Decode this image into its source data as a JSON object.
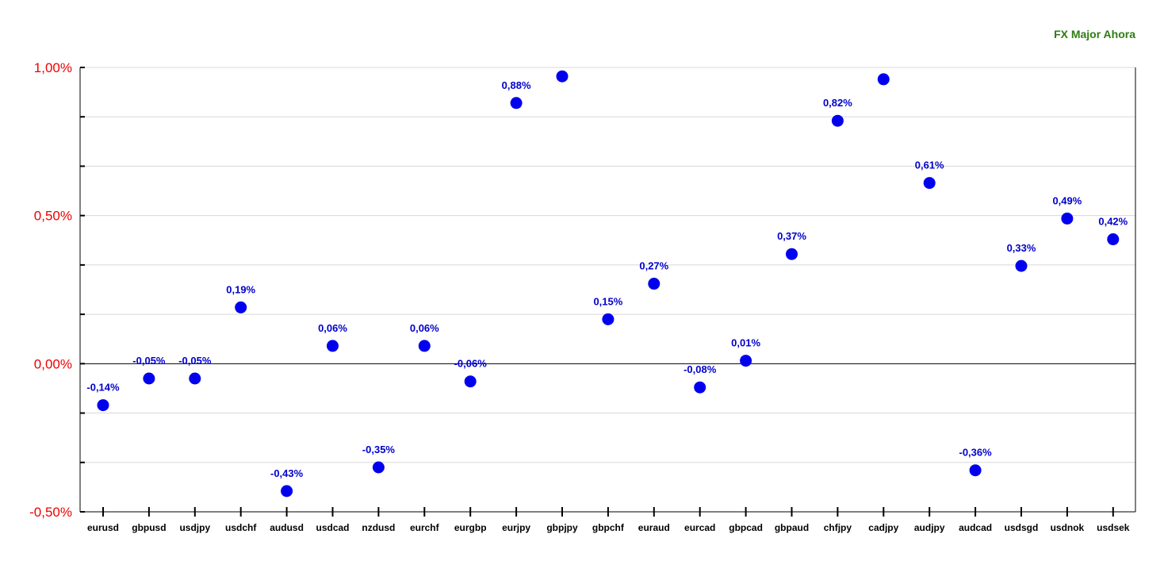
{
  "chart_data": {
    "type": "scatter",
    "title": "FX Major Ahora",
    "xlabel": "",
    "ylabel": "",
    "ylim": [
      -0.5,
      1.0
    ],
    "yticks": [
      {
        "value": 1.0,
        "label": "1,00%"
      },
      {
        "value": 0.5,
        "label": "0,50%"
      },
      {
        "value": 0.0,
        "label": "0,00%"
      },
      {
        "value": -0.5,
        "label": "-0,50%"
      }
    ],
    "categories": [
      "eurusd",
      "gbpusd",
      "usdjpy",
      "usdchf",
      "audusd",
      "usdcad",
      "nzdusd",
      "eurchf",
      "eurgbp",
      "eurjpy",
      "gbpjpy",
      "gbpchf",
      "euraud",
      "eurcad",
      "gbpcad",
      "gbpaud",
      "chfjpy",
      "cadjpy",
      "audjpy",
      "audcad",
      "usdsgd",
      "usdnok",
      "usdsek"
    ],
    "values": [
      -0.14,
      -0.05,
      -0.05,
      0.19,
      -0.43,
      0.06,
      -0.35,
      0.06,
      -0.06,
      0.88,
      0.97,
      0.15,
      0.27,
      -0.08,
      0.01,
      0.37,
      0.82,
      0.96,
      0.61,
      -0.36,
      0.33,
      0.49,
      0.42
    ],
    "data_labels": [
      "-0,14%",
      "-0,05%",
      "-0,05%",
      "0,19%",
      "-0,43%",
      "0,06%",
      "-0,35%",
      "0,06%",
      "-0,06%",
      "0,88%",
      "",
      "0,15%",
      "0,27%",
      "-0,08%",
      "0,01%",
      "0,37%",
      "0,82%",
      "",
      "0,61%",
      "-0,36%",
      "0,33%",
      "0,49%",
      "0,42%"
    ],
    "grid": true,
    "legend": "none",
    "colors": {
      "point": "#0000ee",
      "data_label": "#0000cc",
      "title": "#2e7d12",
      "y_tick_label": "#ee0000",
      "grid": "#d8d8d8",
      "axis": "#000000"
    }
  }
}
